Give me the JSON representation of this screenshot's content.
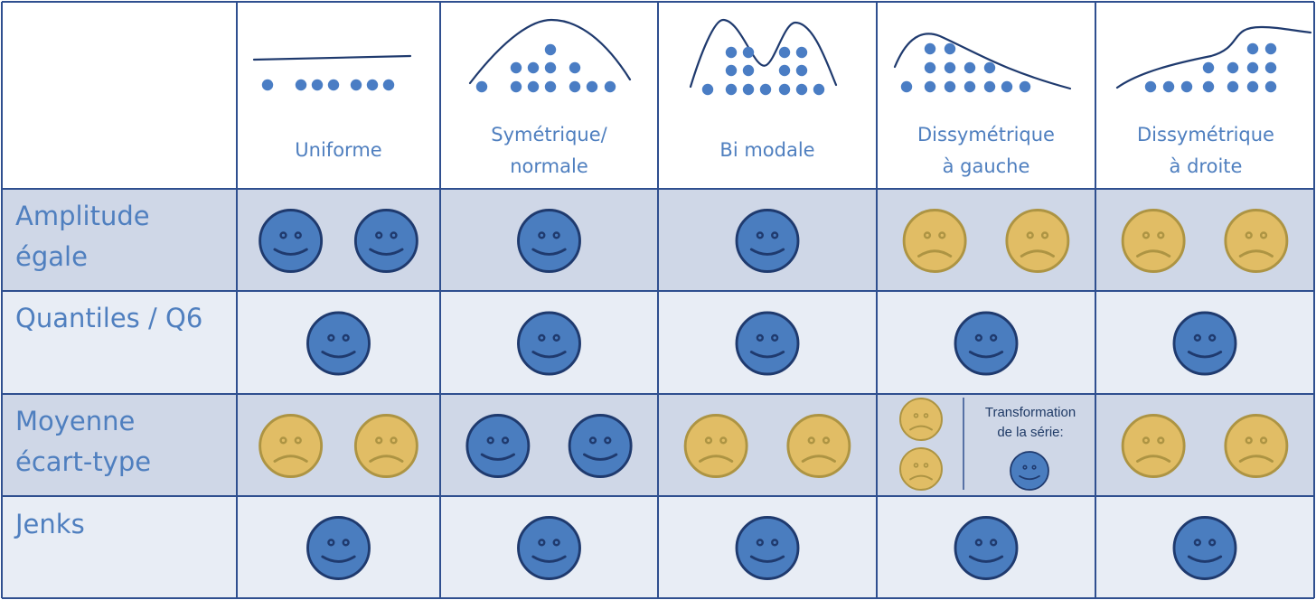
{
  "columns": [
    {
      "id": "uniforme",
      "label": "Uniforme"
    },
    {
      "id": "symetrique",
      "label": "Symétrique/\nnormale"
    },
    {
      "id": "bimodale",
      "label": "Bi modale"
    },
    {
      "id": "dissym-gauche",
      "label": "Dissymétrique\nà gauche"
    },
    {
      "id": "dissym-droite",
      "label": "Dissymétrique\nà droite"
    }
  ],
  "rows": [
    {
      "id": "amplitude",
      "label": "Amplitude\négale",
      "cells": [
        [
          "happy",
          "happy"
        ],
        [
          "happy"
        ],
        [
          "happy"
        ],
        [
          "sad",
          "sad"
        ],
        [
          "sad",
          "sad"
        ]
      ]
    },
    {
      "id": "quantiles",
      "label": "Quantiles / Q6",
      "cells": [
        [
          "happy"
        ],
        [
          "happy"
        ],
        [
          "happy"
        ],
        [
          "happy"
        ],
        [
          "happy"
        ]
      ]
    },
    {
      "id": "moyenne",
      "label": "Moyenne\nécart-type",
      "cells": [
        [
          "sad",
          "sad"
        ],
        [
          "happy",
          "happy"
        ],
        [
          "sad",
          "sad"
        ],
        [
          "special"
        ],
        [
          "sad",
          "sad"
        ]
      ]
    },
    {
      "id": "jenks",
      "label": "Jenks",
      "cells": [
        [
          "happy"
        ],
        [
          "happy"
        ],
        [
          "happy"
        ],
        [
          "happy"
        ],
        [
          "happy"
        ]
      ]
    }
  ],
  "special_note": "Transformation\nde la série:",
  "colors": {
    "border": "#2f4f8f",
    "row_dark": "#cfd7e7",
    "row_light": "#e8edf5",
    "happy_fill": "#4a7dbf",
    "happy_stroke": "#1f3a6e",
    "sad_fill": "#e1bd65",
    "sad_stroke": "#ad9443",
    "dot": "#4a7dc4",
    "curve": "#1f3a6e",
    "label": "#4f7fbf"
  }
}
